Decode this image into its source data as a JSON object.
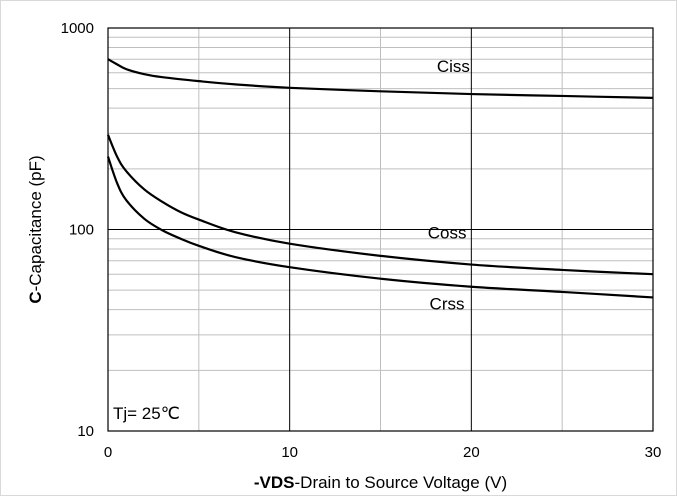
{
  "chart_data": {
    "type": "line",
    "xlabel_bold": "-VDS",
    "xlabel_rest": "-Drain to Source Voltage (V)",
    "ylabel_bold": "C",
    "ylabel_rest": "-Capacitance (pF)",
    "xlim": [
      0,
      30
    ],
    "ylim": [
      10,
      1000
    ],
    "yscale": "log",
    "x_ticks": [
      0,
      10,
      20,
      30
    ],
    "x_tick_labels": [
      "0",
      "10",
      "20",
      "30"
    ],
    "y_ticks": [
      10,
      100,
      1000
    ],
    "y_tick_labels": [
      "10",
      "100",
      "1000"
    ],
    "x_minor_step": 5,
    "grid": true,
    "annotation": "Tj= 25℃",
    "series": [
      {
        "name": "Ciss",
        "x": [
          0,
          0.5,
          1,
          2,
          3,
          5,
          7,
          10,
          15,
          20,
          25,
          30
        ],
        "y": [
          700,
          660,
          625,
          590,
          570,
          545,
          525,
          505,
          485,
          470,
          460,
          450
        ]
      },
      {
        "name": "Coss",
        "x": [
          0,
          0.5,
          1,
          2,
          3,
          4,
          5,
          7,
          10,
          15,
          20,
          25,
          30
        ],
        "y": [
          295,
          230,
          195,
          158,
          137,
          122,
          112,
          97,
          85,
          74,
          67,
          63,
          60
        ]
      },
      {
        "name": "Crss",
        "x": [
          0,
          0.5,
          1,
          2,
          3,
          4,
          5,
          7,
          10,
          15,
          20,
          25,
          30
        ],
        "y": [
          230,
          170,
          140,
          113,
          99,
          90,
          83,
          73,
          65,
          57,
          52,
          49,
          46
        ]
      }
    ],
    "series_label_anchors": [
      {
        "name": "Ciss",
        "x": 18.1,
        "y": 605
      },
      {
        "name": "Coss",
        "x": 17.6,
        "y": 90
      },
      {
        "name": "Crss",
        "x": 17.7,
        "y": 40
      }
    ]
  }
}
